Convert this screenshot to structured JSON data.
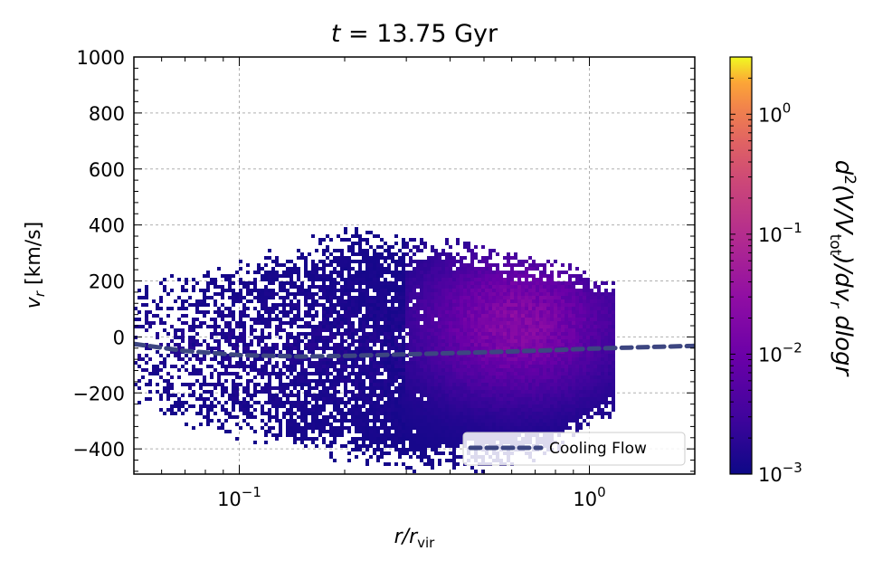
{
  "chart_data": {
    "type": "heatmap",
    "title_var": "t",
    "title_eq": " = 13.75 Gyr",
    "xlabel_main": "r/r",
    "xlabel_sub": "vir",
    "ylabel_main": "v",
    "ylabel_sub": "r",
    "ylabel_unit": " [km/s]",
    "xscale": "log",
    "xlim": [
      0.05,
      2.0
    ],
    "ylim": [
      -490,
      1000
    ],
    "grid": true,
    "x_ticks": [
      {
        "value": 0.1,
        "base": "10",
        "exp": "−1"
      },
      {
        "value": 1.0,
        "base": "10",
        "exp": "0"
      }
    ],
    "y_ticks": [
      {
        "value": 1000,
        "label": "1000"
      },
      {
        "value": 800,
        "label": "800"
      },
      {
        "value": 600,
        "label": "600"
      },
      {
        "value": 400,
        "label": "400"
      },
      {
        "value": 200,
        "label": "200"
      },
      {
        "value": 0,
        "label": "0"
      },
      {
        "value": -200,
        "label": "−200"
      },
      {
        "value": -400,
        "label": "−400"
      }
    ],
    "colorbar": {
      "scale": "log",
      "lim": [
        0.001,
        3.0
      ],
      "colormap": "plasma",
      "label_parts": [
        "d",
        "2",
        "(V/V",
        "tot",
        ")/dv",
        "r",
        " dlogr"
      ],
      "ticks": [
        {
          "value": 0.001,
          "base": "10",
          "exp": "−3"
        },
        {
          "value": 0.01,
          "base": "10",
          "exp": "−2"
        },
        {
          "value": 0.1,
          "base": "10",
          "exp": "−1"
        },
        {
          "value": 1.0,
          "base": "10",
          "exp": "0"
        }
      ]
    },
    "distribution": {
      "description": "2D histogram of gas radial velocity vs radius",
      "upper_envelope": [
        [
          0.05,
          180
        ],
        [
          0.08,
          230
        ],
        [
          0.12,
          290
        ],
        [
          0.2,
          380
        ],
        [
          0.3,
          345
        ],
        [
          0.45,
          330
        ],
        [
          0.6,
          290
        ],
        [
          0.9,
          240
        ],
        [
          1.1,
          200
        ]
      ],
      "lower_envelope": [
        [
          0.05,
          -230
        ],
        [
          0.08,
          -330
        ],
        [
          0.12,
          -380
        ],
        [
          0.2,
          -430
        ],
        [
          0.3,
          -470
        ],
        [
          0.5,
          -465
        ],
        [
          0.8,
          -410
        ],
        [
          1.1,
          -280
        ]
      ],
      "peak_region": {
        "x": [
          0.4,
          1.0
        ],
        "y": [
          -200,
          250
        ],
        "density": 0.03
      }
    },
    "series": [
      {
        "name": "Cooling Flow",
        "color": "#3d4681",
        "style": "dashed",
        "x": [
          0.05,
          0.07,
          0.1,
          0.15,
          0.2,
          0.3,
          0.4,
          0.6,
          0.8,
          1.0,
          1.3,
          1.6,
          2.0
        ],
        "y": [
          -25,
          -50,
          -65,
          -70,
          -68,
          -62,
          -58,
          -52,
          -47,
          -42,
          -38,
          -35,
          -32
        ]
      }
    ],
    "legend": {
      "placement": "lower right"
    }
  }
}
